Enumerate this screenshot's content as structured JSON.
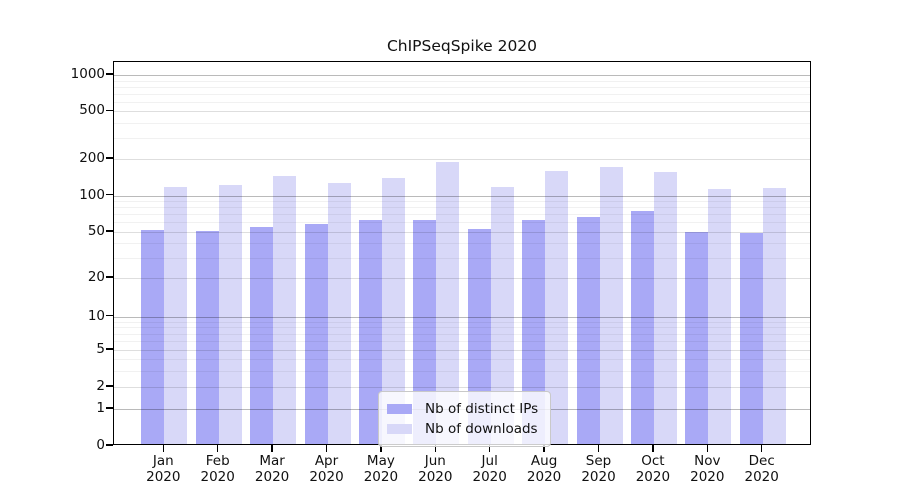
{
  "chart_data": {
    "type": "bar",
    "title": "ChIPSeqSpike 2020",
    "x_tick_months": [
      "Jan",
      "Feb",
      "Mar",
      "Apr",
      "May",
      "Jun",
      "Jul",
      "Aug",
      "Sep",
      "Oct",
      "Nov",
      "Dec"
    ],
    "x_tick_year": "2020",
    "yscale": "log (with 0 baseline, symlog-like)",
    "y_ticks": [
      0,
      1,
      2,
      5,
      10,
      20,
      50,
      100,
      200,
      500,
      1000
    ],
    "ylim": [
      0,
      1000
    ],
    "grid": "horizontal major + minor, visible through bars",
    "legend_position": "bottom-center",
    "series": [
      {
        "name": "Nb of distinct IPs",
        "color": "#a9a9f6",
        "values": [
          50,
          49,
          53,
          56,
          60,
          60,
          51,
          60,
          64,
          72,
          48,
          47
        ]
      },
      {
        "name": "Nb of downloads",
        "color": "#d8d8f8",
        "values": [
          113,
          117,
          140,
          122,
          135,
          180,
          113,
          153,
          166,
          150,
          110,
          111
        ]
      }
    ]
  }
}
